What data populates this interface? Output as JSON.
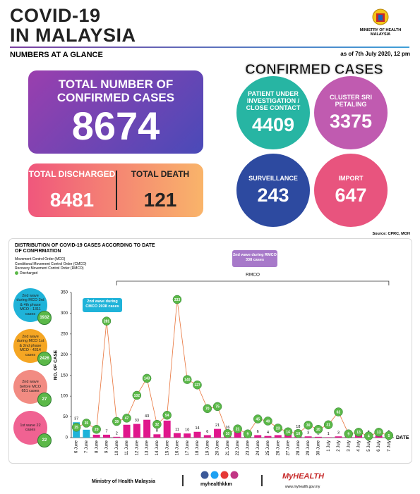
{
  "header": {
    "title_line1": "COVID-19",
    "title_line2": "IN MALAYSIA",
    "subtitle": "NUMBERS AT A GLANCE",
    "as_of": "as of 7th July 2020, 12 pm",
    "ministry": "MINISTRY OF HEALTH MALAYSIA"
  },
  "summary": {
    "confirmed_label": "TOTAL NUMBER OF CONFIRMED CASES",
    "confirmed": 8674,
    "discharged_label": "TOTAL DISCHARGED",
    "discharged": 8481,
    "death_label": "TOTAL DEATH",
    "death": 121
  },
  "confirmed_cases": {
    "title": "CONFIRMED CASES",
    "groups": [
      {
        "label": "PATIENT UNDER INVESTIGATION / CLOSE CONTACT",
        "value": 4409,
        "color": "#27b5a3"
      },
      {
        "label": "CLUSTER SRI PETALING",
        "value": 3375,
        "color": "#c05bb0"
      },
      {
        "label": "SURVEILLANCE",
        "value": 243,
        "color": "#2d4aa0"
      },
      {
        "label": "IMPORT",
        "value": 647,
        "color": "#e8547e"
      }
    ]
  },
  "chart_data": {
    "type": "bar",
    "title": "DISTRIBUTION OF COVID-19 CASES ACCORDING TO DATE OF CONFIRMATION",
    "source": "Source: CPRC, MOH",
    "legend_notes": [
      "Movement Control Order (MCO)",
      "Conditional Movement Control Order (CMCO)",
      "Recovery Movement Control Order (RMCO)"
    ],
    "ylabel": "NO. OF CASE",
    "xlabel": "DATE",
    "categories": [
      "6 June",
      "7 June",
      "8 June",
      "9 June",
      "10 June",
      "11 June",
      "12 June",
      "13 June",
      "14 June",
      "15 June",
      "16 June",
      "17 June",
      "18 June",
      "19 June",
      "20 June",
      "21 June",
      "22 June",
      "23 June",
      "24 June",
      "25 June",
      "26 June",
      "27 June",
      "28 June",
      "29 June",
      "30 June",
      "1 July",
      "2 July",
      "3 July",
      "4 July",
      "5 July",
      "6 July",
      "7 July"
    ],
    "values": [
      37,
      19,
      7,
      7,
      2,
      31,
      33,
      43,
      8,
      41,
      11,
      10,
      14,
      6,
      21,
      16,
      15,
      3,
      6,
      4,
      6,
      10,
      18,
      3,
      2,
      1,
      3,
      5,
      10,
      5,
      5,
      6
    ],
    "colors": [
      "#1fb3d9",
      "#1fb3d9",
      "#e0168c",
      "#e0168c",
      "#e0168c",
      "#e0168c",
      "#e0168c",
      "#e0168c",
      "#e0168c",
      "#e0168c",
      "#e0168c",
      "#e0168c",
      "#e0168c",
      "#e0168c",
      "#e0168c",
      "#e0168c",
      "#e0168c",
      "#e0168c",
      "#e0168c",
      "#e0168c",
      "#e0168c",
      "#e0168c",
      "#e0168c",
      "#e0168c",
      "#e0168c",
      "#e0168c",
      "#e0168c",
      "#e0168c",
      "#e0168c",
      "#e0168c",
      "#e0168c",
      "#e0168c"
    ],
    "line": {
      "name": "Discharged",
      "color": "#e8743b",
      "marker_color": "#5bb848",
      "values": [
        25,
        35,
        20,
        281,
        39,
        47,
        102,
        143,
        32,
        54,
        333,
        140,
        127,
        70,
        75,
        10,
        21,
        9,
        45,
        40,
        23,
        14,
        10,
        30,
        20,
        31,
        62,
        9,
        13,
        4,
        13,
        5
      ]
    },
    "ylim": [
      0,
      350
    ],
    "yticks": [
      0,
      50,
      100,
      150,
      200,
      250,
      300,
      350
    ],
    "annotations": {
      "cmco": "2nd wave during CMCO 2038 cases",
      "rmco": "2nd wave during RMCO 338 cases",
      "rmco_bracket": "RMCO"
    },
    "waves": [
      {
        "label": "2nd wave during MCO 3rd & 4th phase MCO - 1311 cases",
        "discharged": 1932,
        "color": "#1fb3d9"
      },
      {
        "label": "2nd wave during MCO 1st & 2nd phase MCO - 4314 cases",
        "discharged": 2426,
        "color": "#f5a623"
      },
      {
        "label": "2nd wave before MCO 651 cases",
        "discharged": 27,
        "color": "#f28b82"
      },
      {
        "label": "1st wave 22 cases",
        "discharged": 22,
        "color": "#f06292"
      }
    ]
  },
  "footer": {
    "ministry": "Ministry of Health Malaysia",
    "social": "myhealthkkm",
    "brand": "MyHEALTH",
    "url": "www.myhealth.gov.my"
  }
}
